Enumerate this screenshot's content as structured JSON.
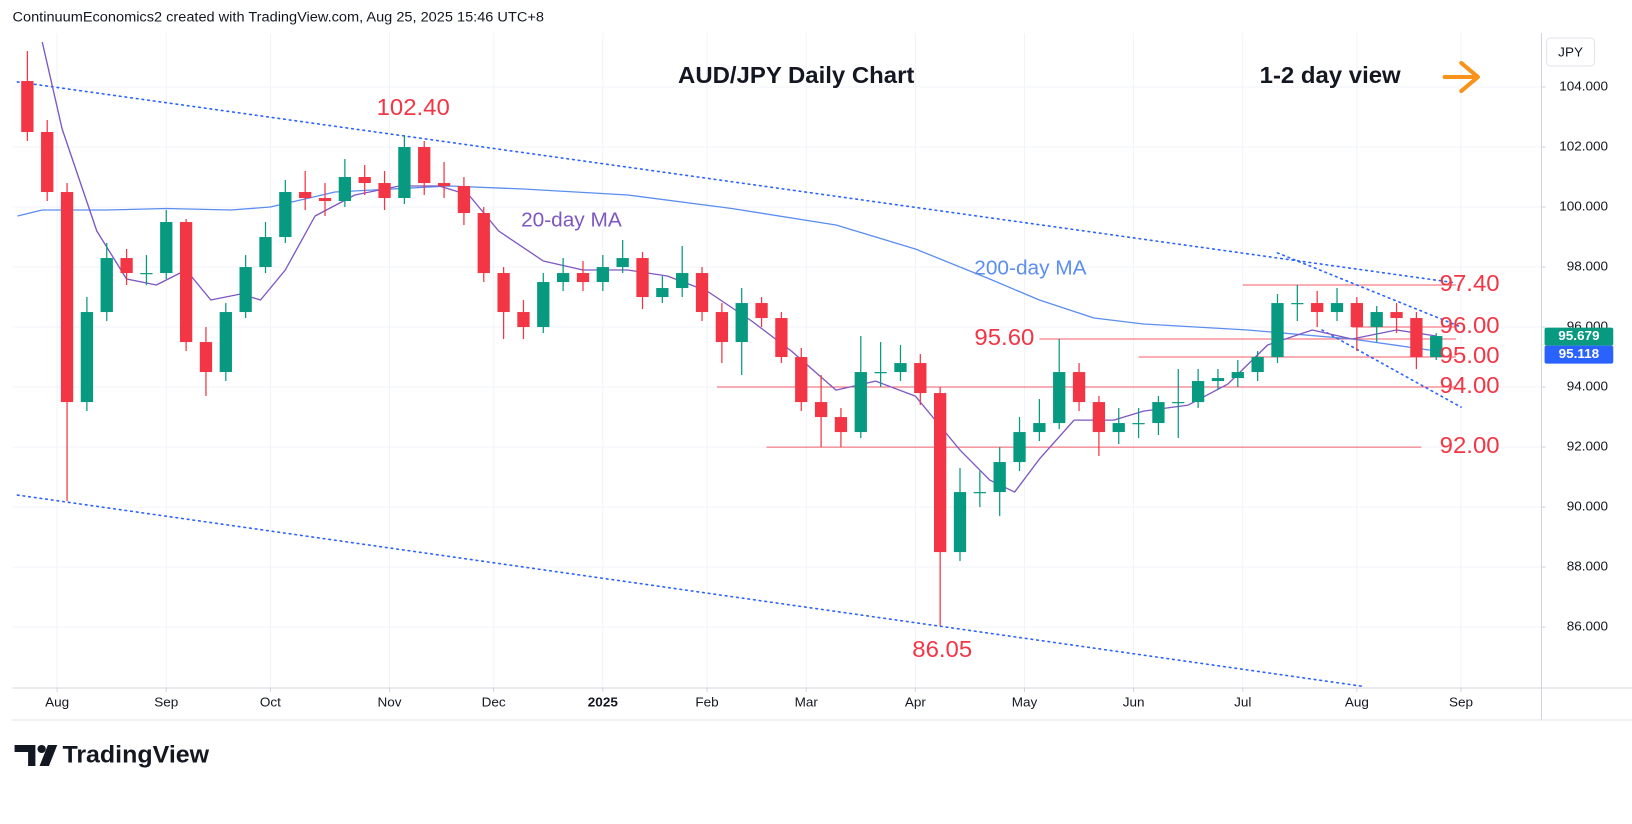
{
  "header": {
    "text": "ContinuumEconomics2 created with TradingView.com, Aug 25, 2025 15:46 UTC+8"
  },
  "footer": {
    "logo": "TradingView"
  },
  "chart_data": {
    "type": "candlestick",
    "title": "AUD/JPY Daily Chart",
    "subtitle": "1-2 day view",
    "currency": "JPY",
    "colors": {
      "up": "#089981",
      "down": "#f23645"
    },
    "x": [
      2,
      6,
      10,
      14,
      18,
      22,
      26,
      30,
      34,
      38,
      42,
      46,
      50,
      54,
      58,
      62,
      66,
      70,
      74,
      78,
      82,
      86,
      90,
      94,
      98,
      102,
      106,
      110,
      114,
      118,
      122,
      126,
      130,
      134,
      138,
      142,
      146,
      150,
      154,
      158,
      162,
      166,
      170,
      174,
      178,
      182,
      186,
      190,
      194,
      198,
      202,
      206,
      210,
      214,
      218,
      222,
      226,
      230,
      234,
      238,
      242,
      246,
      250,
      254,
      258,
      262,
      266,
      270,
      274,
      278,
      282,
      286
    ],
    "open": [
      104.2,
      102.5,
      100.5,
      93.5,
      96.5,
      98.3,
      97.8,
      97.8,
      99.5,
      95.5,
      94.5,
      96.5,
      98,
      99,
      100.5,
      100.3,
      100.2,
      101,
      100.8,
      100.3,
      102,
      100.8,
      100.7,
      99.8,
      97.8,
      96.5,
      96,
      97.5,
      97.8,
      97.5,
      98,
      98.3,
      97,
      97.3,
      97.8,
      96.5,
      95.5,
      96.8,
      96.3,
      95,
      93.5,
      93,
      92.5,
      94.5,
      94.5,
      94.8,
      93.8,
      88.5,
      90.5,
      90.5,
      91.5,
      92.5,
      92.8,
      94.5,
      93.5,
      92.5,
      92.8,
      92.8,
      93.5,
      93.5,
      94.2,
      94.3,
      94.5,
      95,
      96.8,
      96.8,
      96.5,
      96.8,
      96,
      96.5,
      96.3,
      95
    ],
    "high": [
      105.2,
      102.9,
      100.8,
      97,
      98.8,
      98.6,
      98.4,
      99.9,
      99.6,
      96,
      96.8,
      98.4,
      99.5,
      100.9,
      101.2,
      100.8,
      101.6,
      101.4,
      101.2,
      102.4,
      102.2,
      101.5,
      101,
      100,
      98,
      96.9,
      97.8,
      98.3,
      98.2,
      98.4,
      98.9,
      98.5,
      97.7,
      98.7,
      98,
      96.8,
      97.3,
      97,
      96.5,
      95.3,
      94.4,
      93.3,
      95.7,
      95.5,
      95.4,
      95.1,
      94,
      91.3,
      91.2,
      92,
      93,
      93.6,
      95.6,
      94.8,
      93.7,
      93.3,
      93.3,
      93.7,
      94.6,
      94.6,
      94.6,
      94.9,
      95.2,
      97.1,
      97.4,
      97.2,
      97.3,
      97,
      96.7,
      96.8,
      96.5,
      95.8
    ],
    "low": [
      102.2,
      100.2,
      90.2,
      93.2,
      96.2,
      97.4,
      97.4,
      97.6,
      95.2,
      93.7,
      94.2,
      96.3,
      97.8,
      98.8,
      99.9,
      99.7,
      100,
      100.4,
      99.9,
      100.1,
      100.4,
      100.3,
      99.4,
      97.5,
      95.6,
      95.6,
      95.8,
      97.2,
      97.2,
      97.2,
      97.8,
      96.6,
      96.8,
      97,
      96.2,
      94.8,
      94.4,
      96,
      94.8,
      93.2,
      92,
      92,
      92.3,
      94,
      94.2,
      93.4,
      86.05,
      88.2,
      90,
      89.7,
      91.2,
      92.2,
      92.6,
      93.2,
      91.7,
      92.1,
      92.3,
      92.4,
      92.3,
      93.3,
      93.9,
      94,
      94.2,
      94.8,
      96.2,
      96,
      96.2,
      95.2,
      95.5,
      95.8,
      94.6,
      94.9
    ],
    "close": [
      102.5,
      100.5,
      93.5,
      96.5,
      98.3,
      97.8,
      97.8,
      99.5,
      95.5,
      94.5,
      96.5,
      98,
      99,
      100.5,
      100.3,
      100.2,
      101,
      100.8,
      100.3,
      102,
      100.8,
      100.7,
      99.8,
      97.8,
      96.5,
      96,
      97.5,
      97.8,
      97.5,
      98,
      98.3,
      97,
      97.3,
      97.8,
      96.5,
      95.5,
      96.8,
      96.3,
      95,
      93.5,
      93,
      92.5,
      94.5,
      94.5,
      94.8,
      93.8,
      88.5,
      90.5,
      90.5,
      91.5,
      92.5,
      92.8,
      94.5,
      93.5,
      92.5,
      92.8,
      92.8,
      93.5,
      93.5,
      94.2,
      94.3,
      94.5,
      95,
      96.8,
      96.8,
      96.5,
      96.8,
      96,
      96.5,
      96.3,
      95,
      95.7
    ],
    "series": [
      {
        "name": "200-day MA",
        "color": "#5b8ef0",
        "x": [
          0,
          5,
          18,
          30,
          43,
          51,
          64,
          87,
          102,
          123,
          144,
          165,
          181,
          196,
          206,
          217,
          227,
          248,
          269,
          286
        ],
        "values": [
          99.7,
          99.9,
          99.9,
          99.95,
          99.9,
          100.0,
          100.5,
          100.7,
          100.6,
          100.4,
          99.95,
          99.4,
          98.6,
          97.6,
          96.9,
          96.3,
          96.1,
          95.9,
          95.6,
          95.2
        ]
      },
      {
        "name": "20-day MA",
        "color": "#7e57c2",
        "x": [
          5,
          9,
          16,
          22,
          28,
          34,
          39,
          45,
          49,
          54,
          60,
          68,
          77,
          85,
          91,
          97,
          106,
          114,
          123,
          131,
          139,
          148,
          156,
          165,
          173,
          181,
          190,
          196,
          201,
          206,
          213,
          221,
          227,
          236,
          244,
          252,
          261,
          269,
          278,
          286
        ],
        "values": [
          105.5,
          102.6,
          99.2,
          97.6,
          97.4,
          97.9,
          96.9,
          97.1,
          96.9,
          97.9,
          99.7,
          100.4,
          100.7,
          100.7,
          100.4,
          99.2,
          98.2,
          97.9,
          97.9,
          97.7,
          97.2,
          96.2,
          95.2,
          93.9,
          94.2,
          93.7,
          91.9,
          90.9,
          90.5,
          91.6,
          92.9,
          92.9,
          93.2,
          93.4,
          94.1,
          95.4,
          95.9,
          95.6,
          95.9,
          95.7
        ]
      }
    ],
    "trendlines": [
      {
        "color": "#2962ff",
        "x": [
          0,
          290
        ],
        "values": [
          104.17,
          97.47
        ]
      },
      {
        "color": "#2962ff",
        "x": [
          0,
          271
        ],
        "values": [
          90.4,
          84.03
        ]
      },
      {
        "color": "#2962ff",
        "x": [
          254,
          291
        ],
        "values": [
          98.47,
          96.0
        ]
      },
      {
        "color": "#2962ff",
        "x": [
          263,
          291
        ],
        "values": [
          95.9,
          93.33
        ]
      }
    ],
    "levels": [
      {
        "value": 97.4,
        "label": "97.40",
        "x": [
          247,
          290
        ]
      },
      {
        "value": 96.0,
        "label": "96.00",
        "x": [
          269,
          290
        ]
      },
      {
        "value": 95.6,
        "label": "95.60",
        "x": [
          206,
          290
        ]
      },
      {
        "value": 95.0,
        "label": "95.00",
        "x": [
          226,
          290
        ]
      },
      {
        "value": 94.0,
        "label": "94.00",
        "x": [
          141,
          290
        ]
      },
      {
        "value": 92.0,
        "label": "92.00",
        "x": [
          151,
          283
        ]
      }
    ],
    "level_color": "#f23645",
    "annotations": {
      "high": "102.40",
      "low": "86.05"
    },
    "price_labels": [
      {
        "value": 95.679,
        "label": "95.679",
        "color": "#089981"
      },
      {
        "value": 95.118,
        "label": "95.118",
        "color": "#2962ff"
      }
    ],
    "xlim": [
      -1,
      307
    ],
    "ylim": [
      83.97,
      105.8
    ],
    "xticks": [
      {
        "value": 8,
        "label": "Aug"
      },
      {
        "value": 30,
        "label": "Sep"
      },
      {
        "value": 51,
        "label": "Oct"
      },
      {
        "value": 75,
        "label": "Nov"
      },
      {
        "value": 96,
        "label": "Dec"
      },
      {
        "value": 118,
        "label": "2025"
      },
      {
        "value": 139,
        "label": "Feb"
      },
      {
        "value": 159,
        "label": "Mar"
      },
      {
        "value": 181,
        "label": "Apr"
      },
      {
        "value": 203,
        "label": "May"
      },
      {
        "value": 225,
        "label": "Jun"
      },
      {
        "value": 247,
        "label": "Jul"
      },
      {
        "value": 270,
        "label": "Aug"
      },
      {
        "value": 291,
        "label": "Sep"
      }
    ],
    "yticks": [
      {
        "value": 86,
        "label": "86.000"
      },
      {
        "value": 88,
        "label": "88.000"
      },
      {
        "value": 90,
        "label": "90.000"
      },
      {
        "value": 92,
        "label": "92.000"
      },
      {
        "value": 94,
        "label": "94.000"
      },
      {
        "value": 96,
        "label": "96.000"
      },
      {
        "value": 98,
        "label": "98.000"
      },
      {
        "value": 100,
        "label": "100.000"
      },
      {
        "value": 102,
        "label": "102.000"
      },
      {
        "value": 104,
        "label": "104.000"
      }
    ],
    "grid": true
  }
}
